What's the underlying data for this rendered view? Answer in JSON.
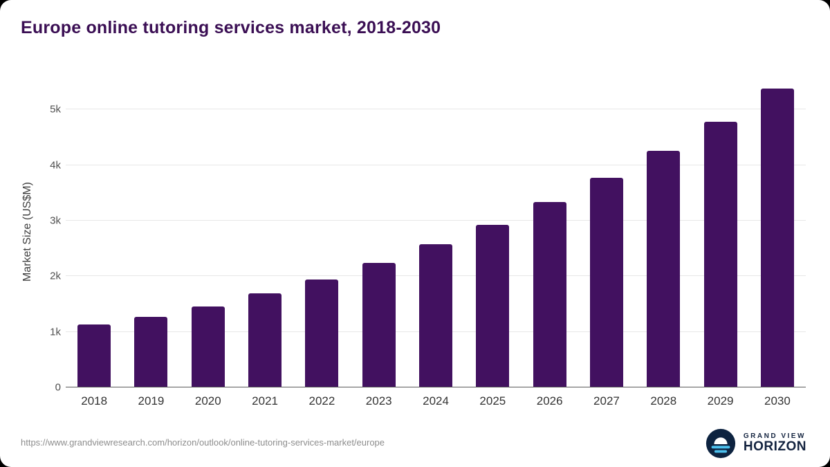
{
  "title": "Europe online tutoring services market, 2018-2030",
  "footer": {
    "source_url": "https://www.grandviewresearch.com/horizon/outlook/online-tutoring-services-market/europe",
    "logo_top": "GRAND VIEW",
    "logo_bottom": "HORIZON"
  },
  "colors": {
    "bar": "#421160",
    "title": "#3b0f54",
    "grid": "#e7e7e7",
    "axis": "#5a5a5a",
    "logo_navy": "#0d2340",
    "logo_blue": "#4cc1ee"
  },
  "chart_data": {
    "type": "bar",
    "categories": [
      "2018",
      "2019",
      "2020",
      "2021",
      "2022",
      "2023",
      "2024",
      "2025",
      "2026",
      "2027",
      "2028",
      "2029",
      "2030"
    ],
    "values": [
      1130,
      1265,
      1460,
      1690,
      1940,
      2240,
      2570,
      2930,
      3340,
      3770,
      4250,
      4780,
      5370
    ],
    "title": "Europe online tutoring services market, 2018-2030",
    "xlabel": "",
    "ylabel": "Market Size (US$M)",
    "ylim": [
      0,
      5600
    ],
    "yticks": [
      0,
      1000,
      2000,
      3000,
      4000,
      5000
    ],
    "ytick_labels": [
      "0",
      "1k",
      "2k",
      "3k",
      "4k",
      "5k"
    ],
    "grid": true,
    "legend": false
  }
}
